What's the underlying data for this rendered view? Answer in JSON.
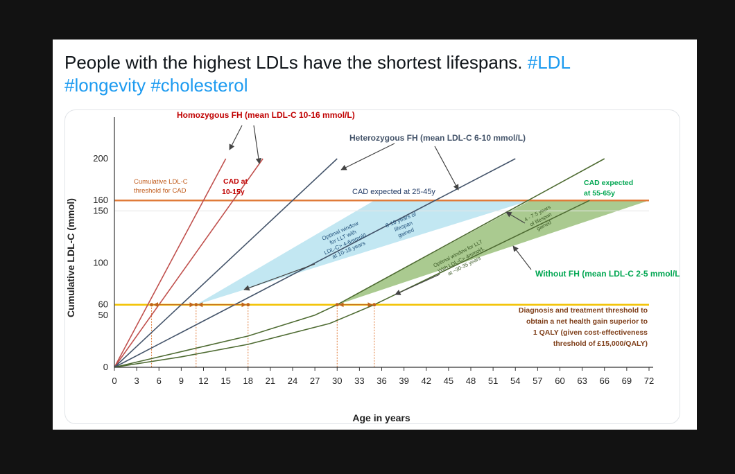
{
  "tweet": {
    "text": "People with the highest LDLs have the shortest lifespans.",
    "hashtags": [
      "#LDL",
      "#longevity",
      "#cholesterol"
    ]
  },
  "chart_data": {
    "type": "line",
    "xlabel": "Age in years",
    "ylabel": "Cumulative LDL-C (mmol)",
    "xticks": [
      0,
      3,
      6,
      9,
      12,
      15,
      18,
      21,
      24,
      27,
      30,
      33,
      36,
      39,
      42,
      45,
      48,
      51,
      54,
      57,
      60,
      63,
      66,
      69,
      72
    ],
    "yticks": [
      0,
      50,
      60,
      100,
      150,
      160,
      200
    ],
    "xlim": [
      0,
      72
    ],
    "ylim": [
      0,
      200
    ],
    "series": [
      {
        "color": "#c0504d",
        "points": [
          [
            0,
            0
          ],
          [
            15,
            200
          ]
        ]
      },
      {
        "color": "#c0504d",
        "points": [
          [
            0,
            0
          ],
          [
            20,
            200
          ]
        ]
      },
      {
        "color": "#44546a",
        "points": [
          [
            0,
            0
          ],
          [
            30,
            200
          ]
        ]
      },
      {
        "color": "#44546a",
        "points": [
          [
            0,
            0
          ],
          [
            54,
            200
          ]
        ]
      },
      {
        "color": "#4e6b32",
        "points": [
          [
            0,
            0
          ],
          [
            9,
            15
          ],
          [
            18,
            30
          ],
          [
            27,
            50
          ],
          [
            30,
            60
          ],
          [
            66,
            200
          ]
        ]
      },
      {
        "color": "#4e6b32",
        "points": [
          [
            0,
            0
          ],
          [
            9,
            10
          ],
          [
            18,
            22
          ],
          [
            29,
            42
          ],
          [
            35,
            60
          ],
          [
            64,
            160
          ]
        ]
      }
    ],
    "threshold_lines": [
      {
        "y": 160,
        "color": "#e07b39",
        "label": "CAD expected at 25-45y"
      },
      {
        "y": 60,
        "color": "#f2c200"
      }
    ],
    "optimal_windows": [
      {
        "color": "#b7e3f0",
        "polygon": [
          [
            11,
            60
          ],
          [
            56,
            160
          ],
          [
            35,
            160
          ]
        ]
      },
      {
        "color": "#9bc17c",
        "polygon": [
          [
            30,
            60
          ],
          [
            72,
            160
          ],
          [
            56,
            160
          ]
        ]
      }
    ],
    "markers_at_60": [
      5,
      11,
      18,
      30,
      35
    ],
    "annotations": {
      "homozygous": "Homozygous FH (mean LDL-C 10-16 mmol/L)",
      "heterozygous": "Heterozygous FH (mean LDL-C 6-10 mmol/L)",
      "threshold_left": [
        "Cumulative LDL-C",
        "threshold for CAD"
      ],
      "cad_10_15": [
        "CAD at",
        "10-15y"
      ],
      "cad_55_65": [
        "CAD expected",
        "at 55-65y"
      ],
      "window_hetero": [
        "Optimal window",
        "for LLT with",
        "LDL-C> 4-6mmol/L",
        "at 10-18 years"
      ],
      "gain_hetero": [
        "8-10 years of",
        "lifespan",
        "gained"
      ],
      "window_without": [
        "Optimal window for LLT",
        "With LDL-C> 4mmol/L",
        "at ~30-35 years"
      ],
      "gain_without": [
        "4 - 7.5 years",
        "of lifespan",
        "gained"
      ],
      "without_fh": "Without FH (mean LDL-C 2-5 mmol/L)",
      "diagnosis": [
        "Diagnosis and treatment threshold to",
        "obtain a net health gain superior to",
        "1 QALY (given cost-effectiveness",
        "threshold of £15,000/QALY)"
      ]
    }
  }
}
